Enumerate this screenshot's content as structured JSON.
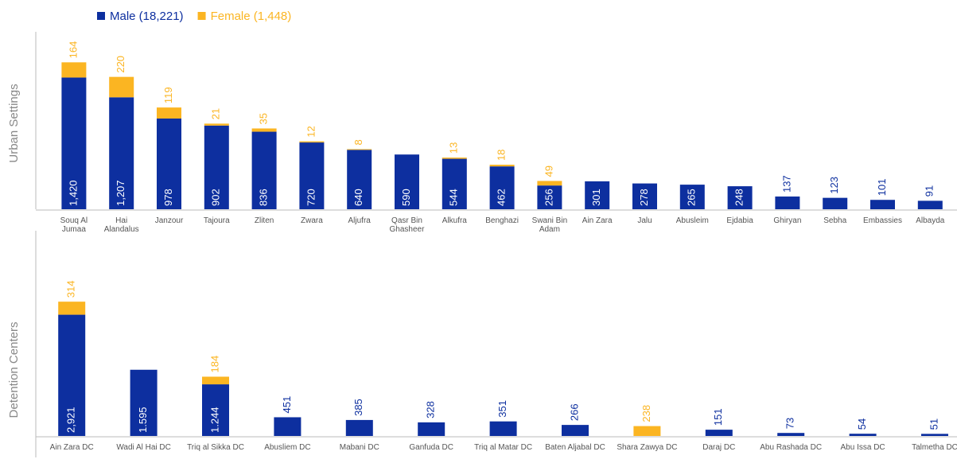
{
  "chart_data": [
    {
      "type": "bar",
      "stacked": true,
      "title": "Urban Settings",
      "categories": [
        "Souq Al Jumaa",
        "Hai Alandalus",
        "Janzour",
        "Tajoura",
        "Zliten",
        "Zwara",
        "Aljufra",
        "Qasr Bin Ghasheer",
        "Alkufra",
        "Benghazi",
        "Swani Bin Adam",
        "Ain Zara",
        "Jalu",
        "Abusleim",
        "Ejdabia",
        "Ghiryan",
        "Sebha",
        "Embassies",
        "Albayda"
      ],
      "series": [
        {
          "name": "Male (18,221)",
          "color": "#0d2f9f",
          "values": [
            1420,
            1207,
            978,
            902,
            836,
            720,
            640,
            590,
            544,
            462,
            256,
            301,
            278,
            265,
            248,
            137,
            123,
            101,
            91
          ],
          "value_labels": [
            "1,420",
            "1,207",
            "978",
            "902",
            "836",
            "720",
            "640",
            "590",
            "544",
            "462",
            "256",
            "301",
            "278",
            "265",
            "248",
            "137",
            "123",
            "101",
            "91"
          ]
        },
        {
          "name": "Female (1,448)",
          "color": "#fbb522",
          "values": [
            164,
            220,
            119,
            21,
            35,
            12,
            8,
            null,
            13,
            18,
            49,
            null,
            null,
            null,
            null,
            null,
            null,
            null,
            null
          ]
        }
      ],
      "ylim": [
        0,
        1870
      ]
    },
    {
      "type": "bar",
      "stacked": true,
      "title": "Detention Centers",
      "categories": [
        "Ain Zara DC",
        "Wadi Al Hai DC",
        "Triq al Sikka DC",
        "Abusliem DC",
        "Mabani DC",
        "Ganfuda DC",
        "Triq al Matar DC",
        "Baten Aljabal DC",
        "Shara Zawya DC",
        "Daraj DC",
        "Abu Rashada DC",
        "Abu Issa DC",
        "Talmetha DC"
      ],
      "series": [
        {
          "color": "#0d2f9f",
          "values": [
            2921,
            1595,
            1244,
            451,
            385,
            328,
            351,
            266,
            null,
            151,
            73,
            54,
            51
          ],
          "value_labels": [
            "2,921",
            "1.595",
            "1.244",
            "451",
            "385",
            "328",
            "351",
            "266",
            null,
            "151",
            "73",
            "54",
            "51"
          ]
        },
        {
          "color": "#fbb522",
          "values": [
            314,
            null,
            184,
            null,
            null,
            null,
            null,
            null,
            238,
            null,
            null,
            null,
            null
          ]
        }
      ],
      "ylim": [
        0,
        3890
      ]
    }
  ]
}
